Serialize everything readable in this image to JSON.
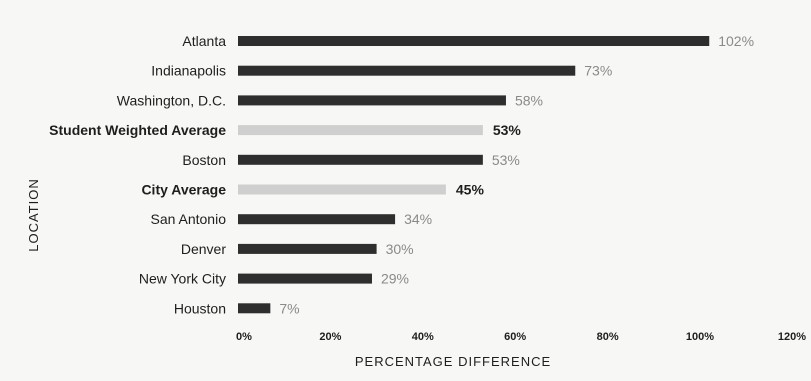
{
  "chart_data": {
    "type": "bar",
    "orientation": "horizontal",
    "xlabel": "PERCENTAGE DIFFERENCE",
    "ylabel": "LOCATION",
    "xlim": [
      0,
      120
    ],
    "x_ticks": [
      "0%",
      "20%",
      "40%",
      "60%",
      "80%",
      "100%",
      "120%"
    ],
    "x_tick_values": [
      0,
      20,
      40,
      60,
      80,
      100,
      120
    ],
    "grid": false,
    "legend": "none",
    "categories": [
      "Atlanta",
      "Indianapolis",
      "Washington, D.C.",
      "Student Weighted Average",
      "Boston",
      "City Average",
      "San Antonio",
      "Denver",
      "New York City",
      "Houston"
    ],
    "values": [
      102,
      73,
      58,
      53,
      53,
      45,
      34,
      30,
      29,
      7
    ],
    "value_labels": [
      "102%",
      "73%",
      "58%",
      "53%",
      "53%",
      "45%",
      "34%",
      "30%",
      "29%",
      "7%"
    ],
    "highlighted": [
      false,
      false,
      false,
      true,
      false,
      true,
      false,
      false,
      false,
      false
    ],
    "colors": {
      "bar": "#2e2e2e",
      "highlight_bar": "#cfcfcf",
      "text": "#1e1e1e",
      "value_text": "#8a8a8a"
    }
  }
}
